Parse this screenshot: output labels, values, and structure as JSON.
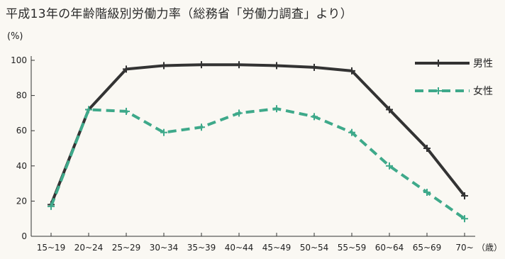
{
  "chart_data": {
    "type": "line",
    "title": "平成13年の年齢階級別労働力率（総務省「労働力調査」より）",
    "ylabel": "(%)",
    "xunit": "（歳）",
    "categories": [
      "15~19",
      "20~24",
      "25~29",
      "30~34",
      "35~39",
      "40~44",
      "45~49",
      "50~54",
      "55~59",
      "60~64",
      "65~69",
      "70~"
    ],
    "yticks": [
      "0",
      "20",
      "40",
      "60",
      "80",
      "100"
    ],
    "ylim": [
      0,
      100
    ],
    "grid": false,
    "legend_position": "top-right",
    "series": [
      {
        "name": "男性",
        "color": "#333333",
        "style": "solid",
        "values": [
          18,
          72,
          95,
          97,
          97.5,
          97.5,
          97,
          96,
          94,
          72,
          50,
          23
        ]
      },
      {
        "name": "女性",
        "color": "#3ea98a",
        "style": "dashed",
        "values": [
          17,
          72,
          71,
          59,
          62,
          70,
          72.5,
          68,
          59,
          40,
          25,
          10
        ]
      }
    ]
  }
}
